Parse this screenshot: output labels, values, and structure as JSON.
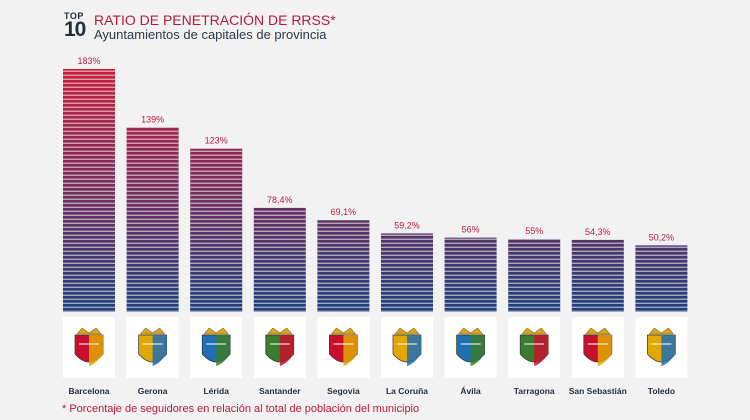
{
  "header": {
    "top_label": "TOP",
    "top_number": "10",
    "title": "RATIO DE PENETRACIÓN DE RRSS*",
    "subtitle": "Ayuntamientos de capitales de provincia"
  },
  "footnote": "* Porcentaje de seguidores en relación al total de población del municipio",
  "colors": {
    "background": "#f2f2f2",
    "bar_top": "#c81e3f",
    "bar_bottom": "#1f3f7a",
    "value_label": "#b51a3c",
    "category_label": "#1f2d3d"
  },
  "chart_data": {
    "type": "bar",
    "title": "RATIO DE PENETRACIÓN DE RRSS*",
    "subtitle": "Ayuntamientos de capitales de provincia",
    "categories": [
      "Barcelona",
      "Gerona",
      "Lérida",
      "Santander",
      "Segovia",
      "La Coruña",
      "Ávila",
      "Tarragona",
      "San Sebastián",
      "Toledo"
    ],
    "values": [
      183,
      139,
      123,
      78.4,
      69.1,
      59.2,
      56,
      55,
      54.3,
      50.2
    ],
    "value_labels": [
      "183%",
      "139%",
      "123%",
      "78,4%",
      "69,1%",
      "59,2%",
      "56%",
      "55%",
      "54,3%",
      "50,2%"
    ],
    "crest_icons": [
      "barcelona-crest-icon",
      "gerona-crest-icon",
      "lerida-crest-icon",
      "santander-crest-icon",
      "segovia-crest-icon",
      "la-coruna-crest-icon",
      "avila-crest-icon",
      "tarragona-crest-icon",
      "san-sebastian-crest-icon",
      "toledo-crest-icon"
    ],
    "ylim": [
      0,
      183
    ],
    "grid": false,
    "legend": "none"
  }
}
